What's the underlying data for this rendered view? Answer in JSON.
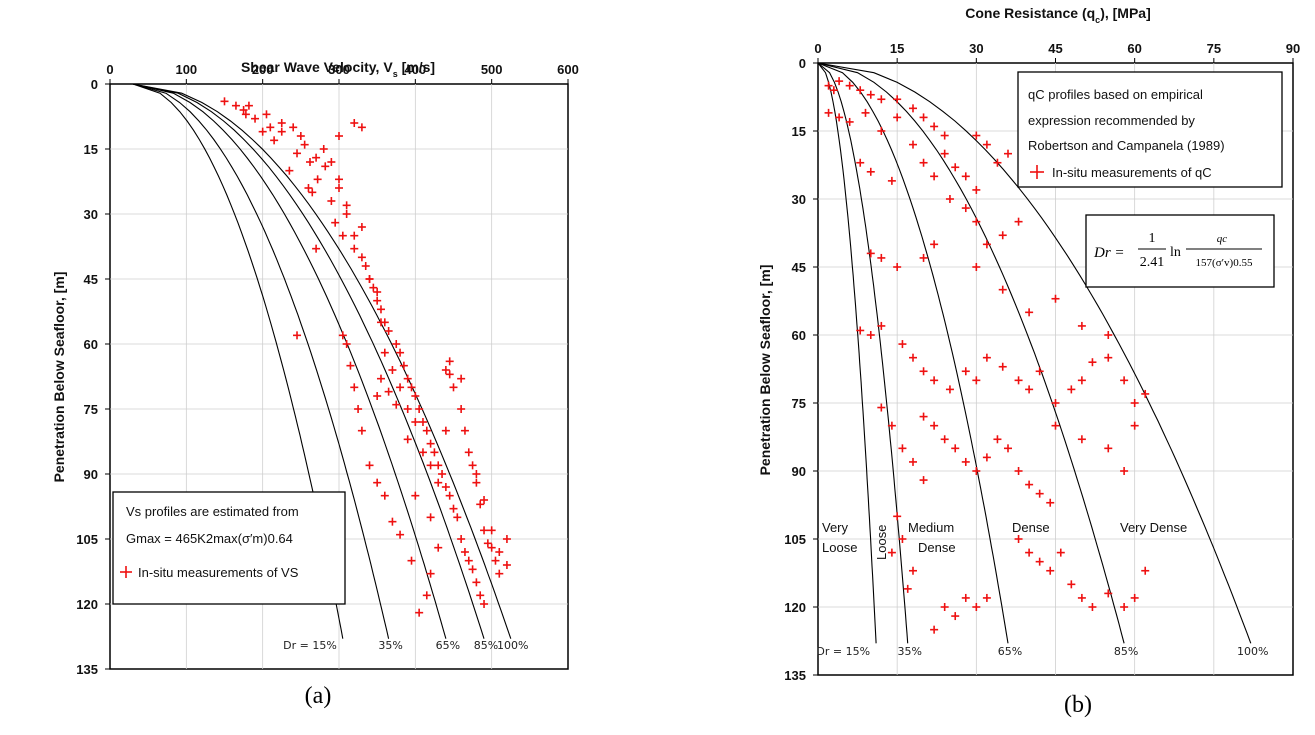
{
  "chart_data": [
    {
      "id": "a",
      "type": "scatter",
      "caption": "(a)",
      "title": "Shear Wave Velocity, V",
      "title_subscript": "s",
      "title_unit": " [m/s]",
      "ylabel": "Penetration Below Seafloor, [m]",
      "xlim": [
        0,
        600
      ],
      "ylim": [
        0,
        135
      ],
      "xticks": [
        0,
        100,
        200,
        300,
        400,
        500,
        600
      ],
      "yticks": [
        0,
        15,
        30,
        45,
        60,
        75,
        90,
        105,
        120,
        135
      ],
      "curves": [
        {
          "label": "Dr = 15%",
          "x_end": 305
        },
        {
          "label": "35%",
          "x_end": 365
        },
        {
          "label": "65%",
          "x_end": 440
        },
        {
          "label": "85%",
          "x_end": 490
        },
        {
          "label": "100%",
          "x_end": 525
        }
      ],
      "legend_lines": [
        "Vs profiles are estimated from",
        "Gmax = 465K2max(σ′m)0.64"
      ],
      "legend_marker": "In-situ measurements of VS",
      "points": [
        [
          150,
          4
        ],
        [
          165,
          5
        ],
        [
          175,
          6
        ],
        [
          178,
          7
        ],
        [
          182,
          5
        ],
        [
          190,
          8
        ],
        [
          205,
          7
        ],
        [
          210,
          10
        ],
        [
          225,
          11
        ],
        [
          240,
          10
        ],
        [
          250,
          12
        ],
        [
          255,
          14
        ],
        [
          245,
          16
        ],
        [
          262,
          18
        ],
        [
          270,
          17
        ],
        [
          282,
          19
        ],
        [
          272,
          22
        ],
        [
          265,
          25
        ],
        [
          290,
          27
        ],
        [
          300,
          24
        ],
        [
          310,
          28
        ],
        [
          295,
          32
        ],
        [
          305,
          35
        ],
        [
          320,
          38
        ],
        [
          330,
          40
        ],
        [
          335,
          42
        ],
        [
          340,
          45
        ],
        [
          345,
          47
        ],
        [
          350,
          50
        ],
        [
          355,
          52
        ],
        [
          360,
          55
        ],
        [
          365,
          57
        ],
        [
          375,
          60
        ],
        [
          380,
          62
        ],
        [
          385,
          65
        ],
        [
          390,
          68
        ],
        [
          395,
          70
        ],
        [
          400,
          72
        ],
        [
          405,
          75
        ],
        [
          410,
          78
        ],
        [
          415,
          80
        ],
        [
          420,
          83
        ],
        [
          425,
          85
        ],
        [
          430,
          88
        ],
        [
          435,
          90
        ],
        [
          440,
          93
        ],
        [
          445,
          95
        ],
        [
          450,
          98
        ],
        [
          455,
          100
        ],
        [
          460,
          105
        ],
        [
          465,
          108
        ],
        [
          470,
          110
        ],
        [
          475,
          112
        ],
        [
          480,
          115
        ],
        [
          485,
          118
        ],
        [
          490,
          120
        ],
        [
          430,
          107
        ],
        [
          420,
          113
        ],
        [
          415,
          118
        ],
        [
          405,
          122
        ],
        [
          395,
          110
        ],
        [
          380,
          104
        ],
        [
          370,
          101
        ],
        [
          360,
          95
        ],
        [
          350,
          92
        ],
        [
          340,
          88
        ],
        [
          330,
          80
        ],
        [
          325,
          75
        ],
        [
          320,
          70
        ],
        [
          315,
          65
        ],
        [
          310,
          60
        ],
        [
          305,
          58
        ],
        [
          245,
          58
        ],
        [
          270,
          38
        ],
        [
          200,
          11
        ],
        [
          215,
          13
        ],
        [
          225,
          9
        ],
        [
          235,
          20
        ],
        [
          260,
          24
        ],
        [
          280,
          15
        ],
        [
          300,
          12
        ],
        [
          320,
          9
        ],
        [
          330,
          10
        ],
        [
          290,
          18
        ],
        [
          300,
          22
        ],
        [
          310,
          30
        ],
        [
          320,
          35
        ],
        [
          330,
          33
        ],
        [
          340,
          45
        ],
        [
          350,
          48
        ],
        [
          355,
          55
        ],
        [
          360,
          62
        ],
        [
          370,
          66
        ],
        [
          380,
          70
        ],
        [
          390,
          75
        ],
        [
          400,
          78
        ],
        [
          410,
          85
        ],
        [
          420,
          88
        ],
        [
          430,
          92
        ],
        [
          440,
          66
        ],
        [
          445,
          67
        ],
        [
          450,
          70
        ],
        [
          460,
          75
        ],
        [
          465,
          80
        ],
        [
          470,
          85
        ],
        [
          475,
          88
        ],
        [
          480,
          92
        ],
        [
          485,
          97
        ],
        [
          490,
          103
        ],
        [
          495,
          106
        ],
        [
          500,
          107
        ],
        [
          505,
          110
        ],
        [
          510,
          113
        ],
        [
          520,
          111
        ],
        [
          520,
          105
        ],
        [
          510,
          108
        ],
        [
          500,
          103
        ],
        [
          490,
          96
        ],
        [
          480,
          90
        ],
        [
          460,
          68
        ],
        [
          445,
          64
        ],
        [
          440,
          80
        ],
        [
          420,
          100
        ],
        [
          400,
          95
        ],
        [
          390,
          82
        ],
        [
          375,
          74
        ],
        [
          365,
          71
        ],
        [
          355,
          68
        ],
        [
          350,
          72
        ]
      ]
    },
    {
      "id": "b",
      "type": "scatter",
      "caption": "(b)",
      "title": "Cone Resistance (q",
      "title_subscript": "c",
      "title_unit": "), [MPa]",
      "ylabel": "Penetration Below Seafloor, [m]",
      "xlim": [
        0,
        90
      ],
      "ylim": [
        0,
        135
      ],
      "xticks": [
        0,
        15,
        30,
        45,
        60,
        75,
        90
      ],
      "yticks": [
        0,
        15,
        30,
        45,
        60,
        75,
        90,
        105,
        120,
        135
      ],
      "curves": [
        {
          "label": "Dr = 15%",
          "x_end": 11
        },
        {
          "label": "35%",
          "x_end": 17
        },
        {
          "label": "65%",
          "x_end": 36
        },
        {
          "label": "85%",
          "x_end": 58
        },
        {
          "label": "100%",
          "x_end": 82
        }
      ],
      "zones": [
        "Very",
        "Loose",
        "Loose",
        "Medium",
        "Dense",
        "Dense",
        "Very Dense"
      ],
      "legend_lines": [
        "qC profiles based on empirical",
        "expression recommended by",
        "Robertson and Campanela (1989)"
      ],
      "legend_marker": "In-situ measurements of qC",
      "formula": {
        "lhs": "Dr =",
        "num": "1",
        "den": "2.41",
        "ln": "ln",
        "frac_num": "qc",
        "frac_den": "157(σ′v)0.55"
      },
      "points": [
        [
          2,
          5
        ],
        [
          3,
          6
        ],
        [
          4,
          4
        ],
        [
          6,
          5
        ],
        [
          8,
          6
        ],
        [
          10,
          7
        ],
        [
          12,
          8
        ],
        [
          2,
          11
        ],
        [
          4,
          12
        ],
        [
          6,
          13
        ],
        [
          9,
          11
        ],
        [
          12,
          15
        ],
        [
          15,
          12
        ],
        [
          18,
          18
        ],
        [
          20,
          22
        ],
        [
          22,
          25
        ],
        [
          24,
          20
        ],
        [
          26,
          23
        ],
        [
          28,
          25
        ],
        [
          30,
          28
        ],
        [
          25,
          30
        ],
        [
          28,
          32
        ],
        [
          30,
          35
        ],
        [
          32,
          40
        ],
        [
          35,
          38
        ],
        [
          38,
          35
        ],
        [
          22,
          40
        ],
        [
          20,
          43
        ],
        [
          15,
          45
        ],
        [
          12,
          43
        ],
        [
          10,
          42
        ],
        [
          8,
          59
        ],
        [
          10,
          60
        ],
        [
          12,
          58
        ],
        [
          16,
          62
        ],
        [
          18,
          65
        ],
        [
          20,
          68
        ],
        [
          22,
          70
        ],
        [
          25,
          72
        ],
        [
          28,
          68
        ],
        [
          30,
          70
        ],
        [
          32,
          65
        ],
        [
          35,
          67
        ],
        [
          38,
          70
        ],
        [
          40,
          72
        ],
        [
          42,
          68
        ],
        [
          45,
          75
        ],
        [
          48,
          72
        ],
        [
          50,
          70
        ],
        [
          52,
          66
        ],
        [
          55,
          65
        ],
        [
          58,
          70
        ],
        [
          60,
          75
        ],
        [
          62,
          73
        ],
        [
          20,
          78
        ],
        [
          22,
          80
        ],
        [
          24,
          83
        ],
        [
          26,
          85
        ],
        [
          28,
          88
        ],
        [
          30,
          90
        ],
        [
          32,
          87
        ],
        [
          34,
          83
        ],
        [
          36,
          85
        ],
        [
          38,
          90
        ],
        [
          40,
          93
        ],
        [
          42,
          95
        ],
        [
          44,
          97
        ],
        [
          38,
          105
        ],
        [
          40,
          108
        ],
        [
          42,
          110
        ],
        [
          44,
          112
        ],
        [
          46,
          108
        ],
        [
          48,
          115
        ],
        [
          50,
          118
        ],
        [
          52,
          120
        ],
        [
          55,
          117
        ],
        [
          58,
          120
        ],
        [
          60,
          118
        ],
        [
          62,
          112
        ],
        [
          28,
          118
        ],
        [
          30,
          120
        ],
        [
          32,
          118
        ],
        [
          26,
          122
        ],
        [
          24,
          120
        ],
        [
          22,
          125
        ],
        [
          12,
          76
        ],
        [
          14,
          80
        ],
        [
          16,
          85
        ],
        [
          18,
          88
        ],
        [
          20,
          92
        ],
        [
          15,
          100
        ],
        [
          16,
          105
        ],
        [
          18,
          112
        ],
        [
          17,
          116
        ],
        [
          14,
          108
        ],
        [
          30,
          45
        ],
        [
          35,
          50
        ],
        [
          40,
          55
        ],
        [
          45,
          52
        ],
        [
          50,
          58
        ],
        [
          55,
          60
        ],
        [
          45,
          80
        ],
        [
          50,
          83
        ],
        [
          55,
          85
        ],
        [
          60,
          80
        ],
        [
          58,
          90
        ],
        [
          15,
          8
        ],
        [
          18,
          10
        ],
        [
          20,
          12
        ],
        [
          22,
          14
        ],
        [
          24,
          16
        ],
        [
          8,
          22
        ],
        [
          10,
          24
        ],
        [
          14,
          26
        ],
        [
          30,
          16
        ],
        [
          32,
          18
        ],
        [
          34,
          22
        ],
        [
          36,
          20
        ]
      ]
    }
  ]
}
